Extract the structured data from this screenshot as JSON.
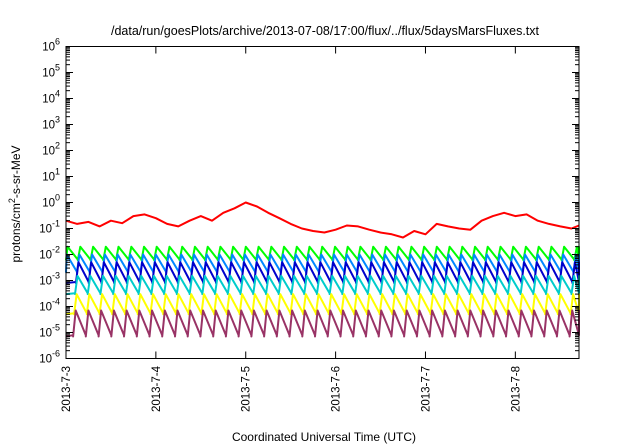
{
  "chart_data": {
    "type": "line",
    "title": "/data/run/goesPlots/archive/2013-07-08/17:00/flux/../flux/5daysMarsFluxes.txt",
    "xlabel": "Coordinated Universal Time (UTC)",
    "ylabel": "protons/cm2-s-sr-MeV",
    "ylabel_parts": {
      "before": "protons/cm",
      "sup": "2",
      "after": "-s-sr-MeV"
    },
    "yscale": "log",
    "ylim": [
      1e-06,
      1000000.0
    ],
    "yticks": [
      {
        "value": 1e-06,
        "base": "10",
        "exp": "-6"
      },
      {
        "value": 1e-05,
        "base": "10",
        "exp": "-5"
      },
      {
        "value": 0.0001,
        "base": "10",
        "exp": "-4"
      },
      {
        "value": 0.001,
        "base": "10",
        "exp": "-3"
      },
      {
        "value": 0.01,
        "base": "10",
        "exp": "-2"
      },
      {
        "value": 0.1,
        "base": "10",
        "exp": "-1"
      },
      {
        "value": 1.0,
        "base": "10",
        "exp": "0"
      },
      {
        "value": 10.0,
        "base": "10",
        "exp": "1"
      },
      {
        "value": 100.0,
        "base": "10",
        "exp": "2"
      },
      {
        "value": 1000.0,
        "base": "10",
        "exp": "3"
      },
      {
        "value": 10000.0,
        "base": "10",
        "exp": "4"
      },
      {
        "value": 100000.0,
        "base": "10",
        "exp": "5"
      },
      {
        "value": 1000000.0,
        "base": "10",
        "exp": "6"
      }
    ],
    "xlim": [
      "2013-07-03T00:00",
      "2013-07-08T17:00"
    ],
    "xticks": [
      "2013-7-3",
      "2013-7-4",
      "2013-7-5",
      "2013-7-6",
      "2013-7-7",
      "2013-7-8"
    ],
    "xtick_dates": [
      "2013-07-03",
      "2013-07-04",
      "2013-07-05",
      "2013-07-06",
      "2013-07-07",
      "2013-07-08"
    ],
    "grid": false,
    "series": [
      {
        "color": "#ff0000",
        "x": [
          "2013-07-03T00:00",
          "2013-07-03T03:00",
          "2013-07-03T06:00",
          "2013-07-03T09:00",
          "2013-07-03T12:00",
          "2013-07-03T15:00",
          "2013-07-03T18:00",
          "2013-07-03T21:00",
          "2013-07-04T00:00",
          "2013-07-04T03:00",
          "2013-07-04T06:00",
          "2013-07-04T09:00",
          "2013-07-04T12:00",
          "2013-07-04T15:00",
          "2013-07-04T18:00",
          "2013-07-04T21:00",
          "2013-07-05T00:00",
          "2013-07-05T03:00",
          "2013-07-05T06:00",
          "2013-07-05T09:00",
          "2013-07-05T12:00",
          "2013-07-05T15:00",
          "2013-07-05T18:00",
          "2013-07-05T21:00",
          "2013-07-06T00:00",
          "2013-07-06T03:00",
          "2013-07-06T06:00",
          "2013-07-06T09:00",
          "2013-07-06T12:00",
          "2013-07-06T15:00",
          "2013-07-06T18:00",
          "2013-07-06T21:00",
          "2013-07-07T00:00",
          "2013-07-07T03:00",
          "2013-07-07T06:00",
          "2013-07-07T09:00",
          "2013-07-07T12:00",
          "2013-07-07T15:00",
          "2013-07-07T18:00",
          "2013-07-07T21:00",
          "2013-07-08T00:00",
          "2013-07-08T03:00",
          "2013-07-08T06:00",
          "2013-07-08T09:00",
          "2013-07-08T12:00",
          "2013-07-08T15:00",
          "2013-07-08T17:00"
        ],
        "values": [
          0.2,
          0.15,
          0.18,
          0.12,
          0.2,
          0.16,
          0.3,
          0.35,
          0.25,
          0.15,
          0.12,
          0.2,
          0.3,
          0.2,
          0.4,
          0.6,
          1.0,
          0.7,
          0.4,
          0.25,
          0.15,
          0.1,
          0.08,
          0.07,
          0.09,
          0.13,
          0.12,
          0.09,
          0.07,
          0.06,
          0.045,
          0.08,
          0.06,
          0.15,
          0.12,
          0.1,
          0.09,
          0.2,
          0.3,
          0.4,
          0.3,
          0.35,
          0.2,
          0.15,
          0.12,
          0.1,
          0.13
        ]
      },
      {
        "color": "#00ff00",
        "peak": 0.02,
        "trough": 0.006
      },
      {
        "color": "#0088ff",
        "peak": 0.01,
        "trough": 0.002
      },
      {
        "color": "#0000cc",
        "peak": 0.005,
        "trough": 0.0008
      },
      {
        "color": "#00cccc",
        "peak": 0.0015,
        "trough": 0.0003
      },
      {
        "color": "#ffff00",
        "peak": 0.0003,
        "trough": 5e-05
      },
      {
        "color": "#993366",
        "peak": 7e-05,
        "trough": 7e-06
      }
    ]
  }
}
